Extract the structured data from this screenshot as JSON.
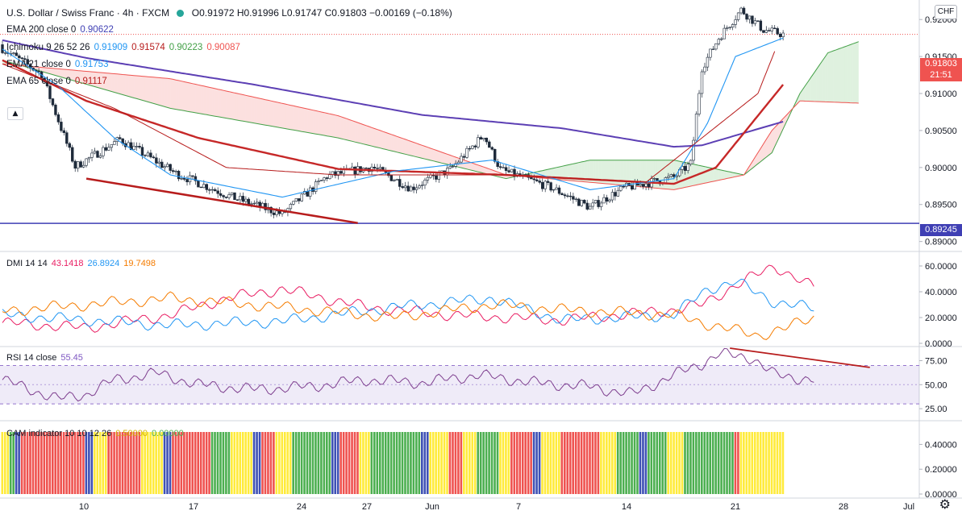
{
  "header": {
    "symbol": "U.S. Dollar / Swiss Franc",
    "sep1": "·",
    "interval": "4h",
    "sep2": "·",
    "exchange": "FXCM",
    "open": "O0.91972",
    "high": "H0.91996",
    "low": "L0.91747",
    "close": "C0.91803",
    "change": "−0.00169 (−0.18%)"
  },
  "legend": {
    "ema200": {
      "name": "EMA 200 close 0",
      "value": "0.90622",
      "color": "#3f3fb4"
    },
    "ichimoku": {
      "name": "Ichimoku 9 26 52 26",
      "values": [
        "0.91909",
        "0.91574",
        "0.90223",
        "0.90087"
      ],
      "colors": [
        "#2196f3",
        "#b71c1c",
        "#43a047",
        "#ef5350"
      ]
    },
    "ema21": {
      "name": "EMA 21 close 0",
      "value": "0.91753",
      "color": "#2196f3"
    },
    "ema65": {
      "name": "EMA 65 close 0",
      "value": "0.91117",
      "color": "#b71c1c"
    }
  },
  "price_tags": {
    "last": "0.91803",
    "countdown": "21:51",
    "support": "0.89245"
  },
  "currency_button": "CHF",
  "gear_icon": "gear-icon",
  "collapse_icon": "chevron-up-icon",
  "chart_data": [
    {
      "type": "candlestick",
      "title": "U.S. Dollar / Swiss Franc · 4h · FXCM",
      "y_ticks": [
        "0.92000",
        "0.91500",
        "0.91000",
        "0.90500",
        "0.90000",
        "0.89500",
        "0.89000"
      ],
      "ylim": [
        0.8892,
        0.9222
      ],
      "x_ticks": [
        "10",
        "17",
        "24",
        "27",
        "Jun",
        "7",
        "14",
        "21",
        "28",
        "Jul"
      ],
      "anchors": [
        {
          "bar": 0,
          "close": 0.9161
        },
        {
          "bar": 14,
          "close": 0.9126
        },
        {
          "bar": 26,
          "close": 0.9001
        },
        {
          "bar": 42,
          "close": 0.9038
        },
        {
          "bar": 62,
          "close": 0.8992
        },
        {
          "bar": 82,
          "close": 0.896
        },
        {
          "bar": 100,
          "close": 0.8937
        },
        {
          "bar": 116,
          "close": 0.8988
        },
        {
          "bar": 132,
          "close": 0.9001
        },
        {
          "bar": 146,
          "close": 0.8972
        },
        {
          "bar": 160,
          "close": 0.8997
        },
        {
          "bar": 172,
          "close": 0.9044
        },
        {
          "bar": 178,
          "close": 0.8997
        },
        {
          "bar": 196,
          "close": 0.8973
        },
        {
          "bar": 210,
          "close": 0.8946
        },
        {
          "bar": 222,
          "close": 0.8972
        },
        {
          "bar": 240,
          "close": 0.8987
        },
        {
          "bar": 246,
          "close": 0.9005
        },
        {
          "bar": 250,
          "close": 0.9135
        },
        {
          "bar": 256,
          "close": 0.9175
        },
        {
          "bar": 264,
          "close": 0.9213
        },
        {
          "bar": 272,
          "close": 0.9186
        },
        {
          "bar": 279,
          "close": 0.918
        }
      ],
      "ema200": [
        [
          0,
          0.9172
        ],
        [
          30,
          0.9148
        ],
        [
          90,
          0.9112
        ],
        [
          150,
          0.9071
        ],
        [
          200,
          0.9053
        ],
        [
          240,
          0.9028
        ],
        [
          250,
          0.903
        ],
        [
          279,
          0.9062
        ]
      ],
      "ema65": [
        [
          0,
          0.9145
        ],
        [
          30,
          0.909
        ],
        [
          70,
          0.904
        ],
        [
          120,
          0.8998
        ],
        [
          180,
          0.899
        ],
        [
          240,
          0.8978
        ],
        [
          255,
          0.9
        ],
        [
          279,
          0.9112
        ]
      ],
      "ema21": [
        [
          0,
          0.916
        ],
        [
          20,
          0.911
        ],
        [
          40,
          0.904
        ],
        [
          60,
          0.899
        ],
        [
          100,
          0.896
        ],
        [
          140,
          0.8995
        ],
        [
          175,
          0.901
        ],
        [
          210,
          0.897
        ],
        [
          240,
          0.8985
        ],
        [
          252,
          0.906
        ],
        [
          262,
          0.915
        ],
        [
          279,
          0.9175
        ]
      ],
      "kijun": [
        [
          0,
          0.914
        ],
        [
          40,
          0.908
        ],
        [
          80,
          0.9
        ],
        [
          120,
          0.899
        ],
        [
          180,
          0.899
        ],
        [
          230,
          0.898
        ],
        [
          250,
          0.904
        ],
        [
          270,
          0.91
        ],
        [
          276,
          0.9157
        ]
      ],
      "span_a": [
        [
          0,
          0.9145
        ],
        [
          60,
          0.908
        ],
        [
          120,
          0.904
        ],
        [
          180,
          0.8985
        ],
        [
          210,
          0.901
        ],
        [
          240,
          0.901
        ],
        [
          265,
          0.899
        ],
        [
          275,
          0.902
        ],
        [
          285,
          0.91
        ],
        [
          295,
          0.9155
        ],
        [
          306,
          0.917
        ]
      ],
      "span_b": [
        [
          0,
          0.914
        ],
        [
          60,
          0.912
        ],
        [
          120,
          0.907
        ],
        [
          180,
          0.899
        ],
        [
          210,
          0.898
        ],
        [
          240,
          0.897
        ],
        [
          265,
          0.899
        ],
        [
          275,
          0.905
        ],
        [
          285,
          0.909
        ],
        [
          306,
          0.9087
        ]
      ],
      "support_line": 0.89245,
      "trendline": [
        [
          30,
          0.8985
        ],
        [
          127,
          0.8925
        ]
      ]
    },
    {
      "type": "line",
      "title": "DMI 14 14",
      "series": [
        {
          "name": "",
          "value_label": "43.1418",
          "color": "#e91e63",
          "values": [
            [
              0,
              16
            ],
            [
              30,
              12
            ],
            [
              60,
              22
            ],
            [
              80,
              35
            ],
            [
              100,
              42
            ],
            [
              130,
              28
            ],
            [
              160,
              22
            ],
            [
              200,
              18
            ],
            [
              240,
              26
            ],
            [
              250,
              30
            ],
            [
              262,
              45
            ],
            [
              276,
              60
            ],
            [
              290,
              43
            ]
          ]
        },
        {
          "name": "",
          "value_label": "26.8924",
          "color": "#2196f3",
          "values": [
            [
              0,
              22
            ],
            [
              30,
              18
            ],
            [
              60,
              14
            ],
            [
              100,
              17
            ],
            [
              140,
              28
            ],
            [
              175,
              35
            ],
            [
              200,
              18
            ],
            [
              240,
              22
            ],
            [
              252,
              42
            ],
            [
              262,
              48
            ],
            [
              276,
              32
            ],
            [
              290,
              27
            ]
          ]
        },
        {
          "name": "",
          "value_label": "19.7498",
          "color": "#f57c00",
          "values": [
            [
              0,
              25
            ],
            [
              30,
              30
            ],
            [
              60,
              35
            ],
            [
              100,
              28
            ],
            [
              140,
              20
            ],
            [
              175,
              30
            ],
            [
              200,
              26
            ],
            [
              240,
              22
            ],
            [
              252,
              15
            ],
            [
              270,
              6
            ],
            [
              280,
              12
            ],
            [
              290,
              20
            ]
          ]
        }
      ],
      "y_ticks": [
        "60.0000",
        "40.0000",
        "20.0000",
        "0.0000"
      ],
      "ylim": [
        0,
        70
      ]
    },
    {
      "type": "line",
      "title": "RSI 14 close",
      "value_label": "55.45",
      "y_ticks": [
        "75.00",
        "50.00",
        "25.00"
      ],
      "ylim": [
        15,
        88
      ],
      "band": [
        30,
        70
      ],
      "values": [
        [
          0,
          55
        ],
        [
          10,
          45
        ],
        [
          20,
          35
        ],
        [
          30,
          40
        ],
        [
          40,
          55
        ],
        [
          55,
          62
        ],
        [
          70,
          50
        ],
        [
          90,
          45
        ],
        [
          110,
          48
        ],
        [
          130,
          55
        ],
        [
          150,
          52
        ],
        [
          170,
          60
        ],
        [
          190,
          52
        ],
        [
          210,
          48
        ],
        [
          225,
          40
        ],
        [
          240,
          60
        ],
        [
          250,
          72
        ],
        [
          256,
          82
        ],
        [
          268,
          78
        ],
        [
          276,
          60
        ],
        [
          290,
          55
        ]
      ],
      "trendline": [
        [
          260,
          88
        ],
        [
          310,
          68
        ]
      ]
    },
    {
      "type": "bar",
      "title": "CAM indicator 10 10 12 26",
      "value_labels": [
        "0.50000",
        "0.00000"
      ],
      "y_ticks": [
        "0.40000",
        "0.20000",
        "0.00000"
      ],
      "ylim": [
        0,
        0.5
      ],
      "colors": [
        "#ef5350",
        "#4caf50",
        "#ffeb3b",
        "#3f51b5"
      ],
      "bars": [
        {
          "color": 2,
          "start": 0,
          "end": 3
        },
        {
          "color": 1,
          "start": 3,
          "end": 5
        },
        {
          "color": 3,
          "start": 5,
          "end": 7
        },
        {
          "color": 0,
          "start": 7,
          "end": 30
        },
        {
          "color": 3,
          "start": 30,
          "end": 33
        },
        {
          "color": 2,
          "start": 33,
          "end": 38
        },
        {
          "color": 0,
          "start": 38,
          "end": 50
        },
        {
          "color": 2,
          "start": 50,
          "end": 58
        },
        {
          "color": 3,
          "start": 58,
          "end": 61
        },
        {
          "color": 0,
          "start": 61,
          "end": 75
        },
        {
          "color": 1,
          "start": 75,
          "end": 82
        },
        {
          "color": 2,
          "start": 82,
          "end": 90
        },
        {
          "color": 3,
          "start": 90,
          "end": 93
        },
        {
          "color": 0,
          "start": 93,
          "end": 98
        },
        {
          "color": 2,
          "start": 98,
          "end": 104
        },
        {
          "color": 1,
          "start": 104,
          "end": 118
        },
        {
          "color": 3,
          "start": 118,
          "end": 121
        },
        {
          "color": 0,
          "start": 121,
          "end": 128
        },
        {
          "color": 2,
          "start": 128,
          "end": 132
        },
        {
          "color": 1,
          "start": 132,
          "end": 150
        },
        {
          "color": 3,
          "start": 150,
          "end": 153
        },
        {
          "color": 2,
          "start": 153,
          "end": 160
        },
        {
          "color": 0,
          "start": 160,
          "end": 165
        },
        {
          "color": 2,
          "start": 165,
          "end": 170
        },
        {
          "color": 1,
          "start": 170,
          "end": 178
        },
        {
          "color": 2,
          "start": 178,
          "end": 182
        },
        {
          "color": 0,
          "start": 182,
          "end": 190
        },
        {
          "color": 3,
          "start": 190,
          "end": 193
        },
        {
          "color": 2,
          "start": 193,
          "end": 200
        },
        {
          "color": 0,
          "start": 200,
          "end": 214
        },
        {
          "color": 2,
          "start": 214,
          "end": 220
        },
        {
          "color": 1,
          "start": 220,
          "end": 228
        },
        {
          "color": 3,
          "start": 228,
          "end": 231
        },
        {
          "color": 1,
          "start": 231,
          "end": 238
        },
        {
          "color": 2,
          "start": 238,
          "end": 244
        },
        {
          "color": 1,
          "start": 244,
          "end": 262
        },
        {
          "color": 0,
          "start": 262,
          "end": 264
        },
        {
          "color": 2,
          "start": 264,
          "end": 280
        }
      ]
    }
  ]
}
